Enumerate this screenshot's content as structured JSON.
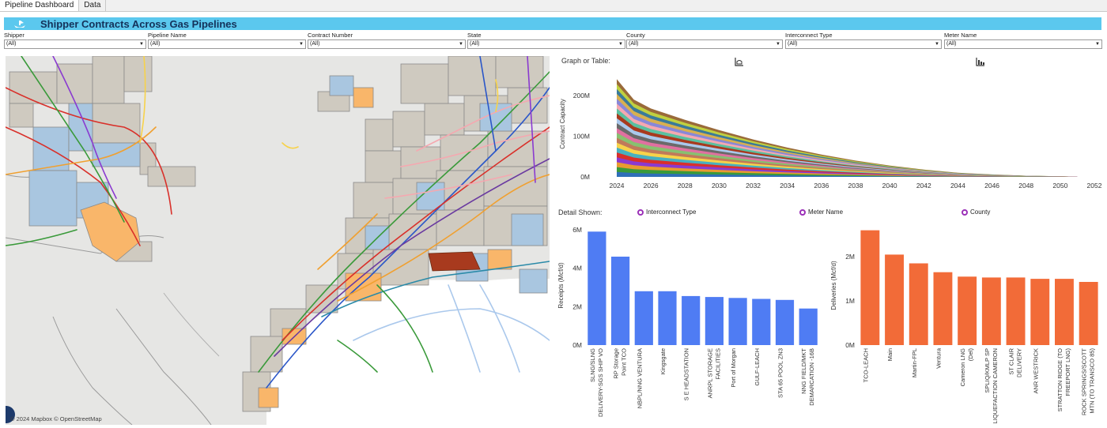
{
  "tabs": [
    {
      "label": "Pipeline Dashboard"
    },
    {
      "label": "Data"
    }
  ],
  "header": {
    "title": "Shipper Contracts Across Gas Pipelines"
  },
  "filters": [
    {
      "label": "Shipper",
      "value": "(All)"
    },
    {
      "label": "Pipeline Name",
      "value": "(All)"
    },
    {
      "label": "Contract Number",
      "value": "(All)"
    },
    {
      "label": "State",
      "value": "(All)"
    },
    {
      "label": "County",
      "value": "(All)"
    },
    {
      "label": "Interconnect Type",
      "value": "(All)"
    },
    {
      "label": "Meter Name",
      "value": "(All)"
    }
  ],
  "map": {
    "attribution": "© 2024 Mapbox  © OpenStreetMap"
  },
  "graph_toggle": {
    "label": "Graph or Table:"
  },
  "detail": {
    "label": "Detail Shown:",
    "options": [
      "Interconnect Type",
      "Meter Name",
      "County"
    ]
  },
  "chart_data": [
    {
      "type": "area",
      "ylabel": "Contract Capacity",
      "x_ticks": [
        "2024",
        "2026",
        "2028",
        "2030",
        "2032",
        "2034",
        "2036",
        "2038",
        "2040",
        "2042",
        "2044",
        "2046",
        "2048",
        "2050",
        "2052"
      ],
      "y_ticks": [
        "0M",
        "100M",
        "200M"
      ],
      "xlim": [
        2024,
        2052
      ],
      "ylim": [
        0,
        260
      ],
      "total": {
        "x": [
          2024,
          2025,
          2026,
          2028,
          2030,
          2032,
          2034,
          2036,
          2038,
          2040,
          2042,
          2044,
          2046,
          2048,
          2050,
          2051
        ],
        "values": [
          240,
          190,
          168,
          140,
          115,
          92,
          72,
          55,
          40,
          28,
          18,
          10,
          6,
          3,
          1.5,
          0.5
        ]
      }
    },
    {
      "type": "bar",
      "ylabel": "Receipts (Mcf/d)",
      "y_ticks": [
        "0M",
        "2M",
        "4M",
        "6M"
      ],
      "ylim": [
        0,
        6.2
      ],
      "color": "#4f7cf3",
      "categories": [
        "SLNG/SLNG DELIVERY-SGS SHIP VO",
        "RP Storage Point TCO",
        "NBPL/NNG VENTURA",
        "Kingsgate",
        "S E HEADSTATION",
        "ANRPL STORAGE FACILITIES",
        "Port of Morgan",
        "GULF-LEACH",
        "STA 65 POOL ZN3",
        "NNG FIELD/MKT DEMARCATION -16B"
      ],
      "values": [
        5.9,
        4.6,
        2.8,
        2.8,
        2.55,
        2.5,
        2.45,
        2.4,
        2.35,
        1.9
      ]
    },
    {
      "type": "bar",
      "ylabel": "Deliveries (Mcf/d)",
      "y_ticks": [
        "0M",
        "1M",
        "2M"
      ],
      "ylim": [
        0,
        2.7
      ],
      "color": "#f26b38",
      "categories": [
        "TCO-LEACH",
        "Main",
        "Martin-FPL",
        "Ventura",
        "Cameron LNG (Del)",
        "SPLIQ/KMLP SP LIQUEFACTION CAMERON",
        "ST CLAIR DELIVERY",
        "ANR WESTRICK",
        "STRATTON RIDGE (TO FREEPORT LNG)",
        "ROCK SPRINGS/SCOTT MTN (TO TRANSCO 85)"
      ],
      "values": [
        2.6,
        2.05,
        1.85,
        1.65,
        1.55,
        1.53,
        1.53,
        1.5,
        1.5,
        1.43
      ]
    }
  ],
  "colors": {
    "accent": "#5bc8ee",
    "title_text": "#14325a",
    "receipts": "#4f7cf3",
    "deliveries": "#f26b38",
    "radio": "#9b30b8"
  }
}
